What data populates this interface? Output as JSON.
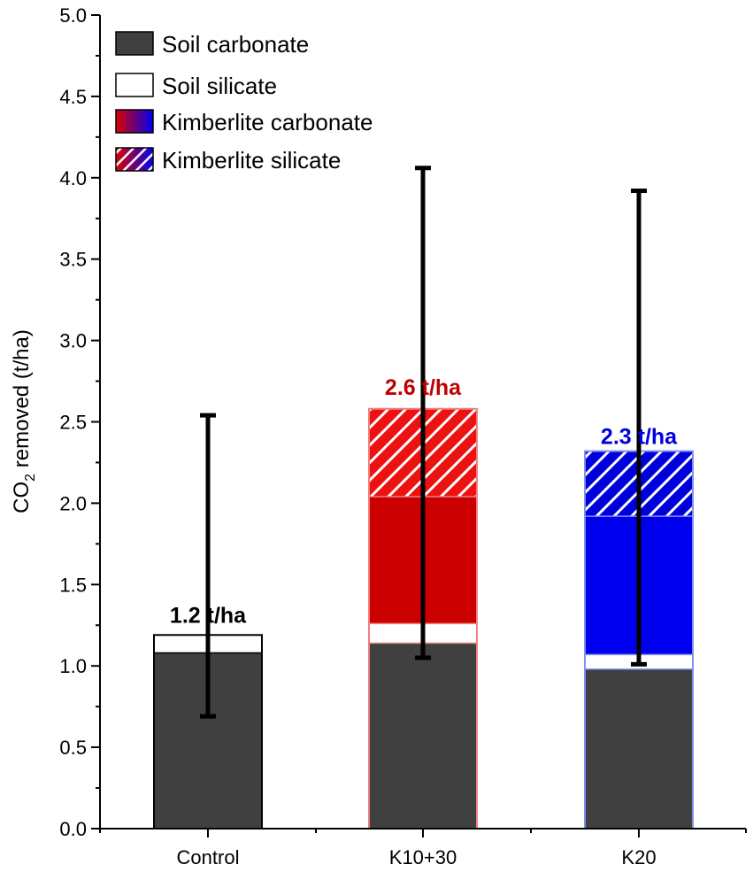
{
  "chart_data": {
    "type": "bar",
    "stacked": true,
    "categories": [
      "Control",
      "K10+30",
      "K20"
    ],
    "ylabel": "CO2 removed (t/ha)",
    "ylabel_main": "CO",
    "ylabel_sub": "2",
    "ylabel_rest": " removed (t/ha)",
    "xlabel": "",
    "ylim": [
      0,
      5
    ],
    "yticks": [
      "0.0",
      "0.5",
      "1.0",
      "1.5",
      "2.0",
      "2.5",
      "3.0",
      "3.5",
      "4.0",
      "4.5",
      "5.0"
    ],
    "legend_position": "top-left",
    "series": [
      {
        "name": "Soil carbonate",
        "values": [
          1.08,
          1.14,
          0.98
        ]
      },
      {
        "name": "Soil silicate",
        "values": [
          0.11,
          0.12,
          0.09
        ]
      },
      {
        "name": "Kimberlite carbonate",
        "values": [
          0,
          0.78,
          0.85
        ]
      },
      {
        "name": "Kimberlite silicate",
        "values": [
          0,
          0.54,
          0.4
        ]
      }
    ],
    "error_bars": [
      {
        "category": "Control",
        "low": 0.69,
        "high": 2.54
      },
      {
        "category": "K10+30",
        "low": 1.05,
        "high": 4.06
      },
      {
        "category": "K20",
        "low": 1.01,
        "high": 3.92
      }
    ],
    "annotations": [
      {
        "category": "Control",
        "text": "1.2 t/ha",
        "value": 1.2,
        "color": "#000000"
      },
      {
        "category": "K10+30",
        "text": "2.6 t/ha",
        "value": 2.6,
        "color": "#c00000"
      },
      {
        "category": "K20",
        "text": "2.3 t/ha",
        "value": 2.3,
        "color": "#0000dd"
      }
    ],
    "colors": {
      "soil_carbonate": "#404040",
      "soil_silicate": "#ffffff",
      "red": "#cc0000",
      "blue": "#0000ee",
      "red_edge": "#f08080",
      "blue_edge": "#8090f0"
    }
  }
}
